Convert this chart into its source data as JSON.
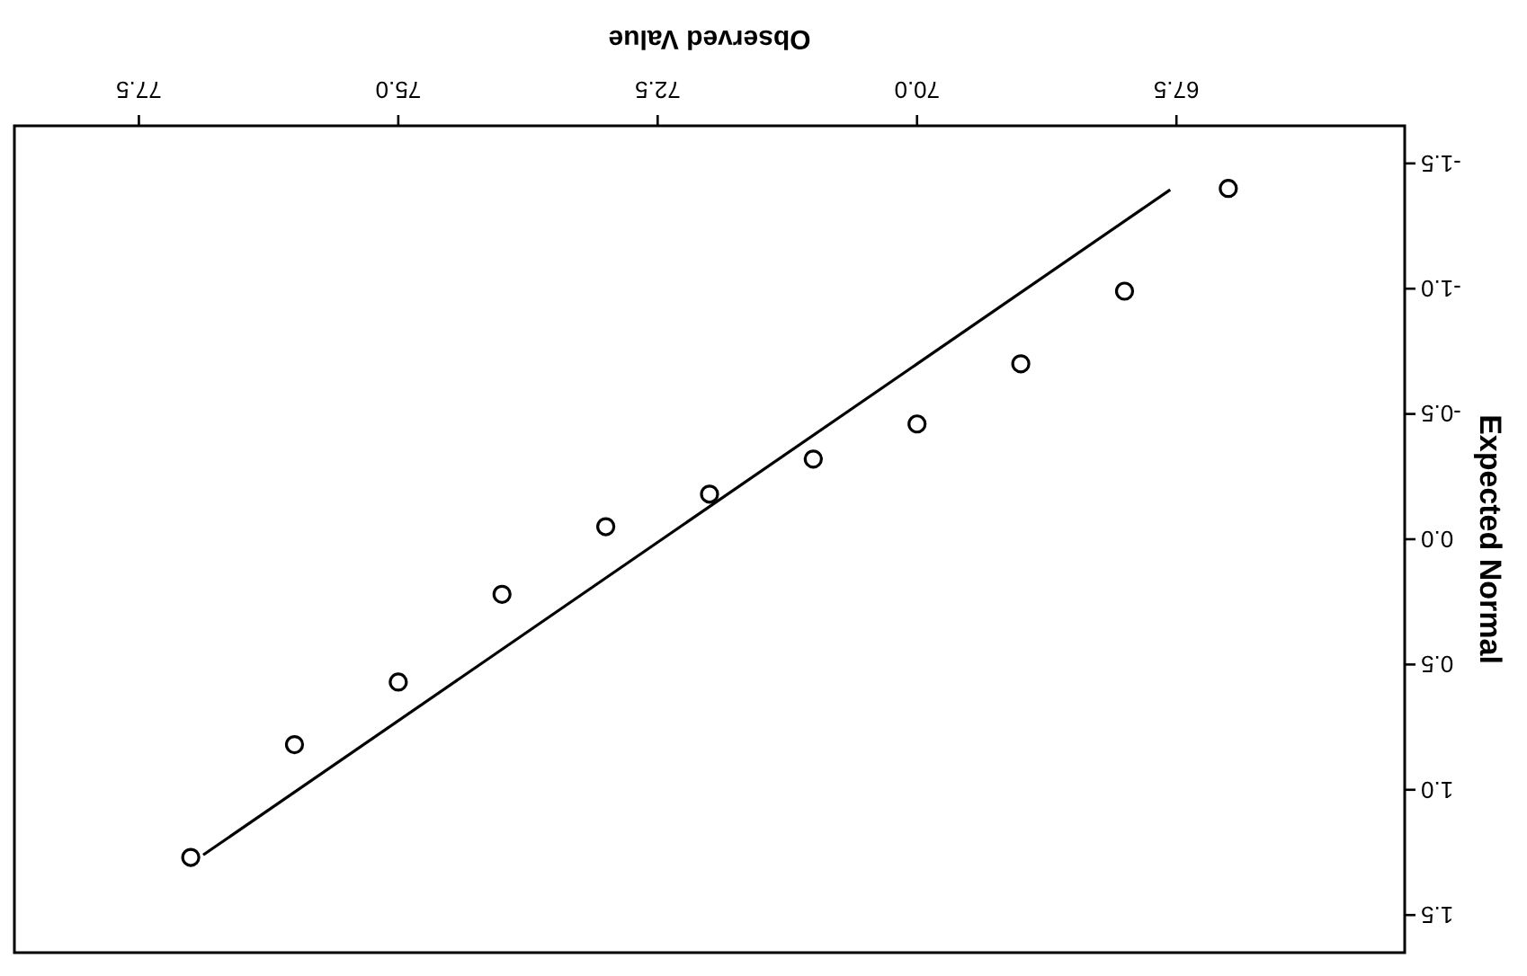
{
  "chart_data": {
    "type": "scatter",
    "xlabel": "Observed Value",
    "ylabel": "Expected Normal",
    "xlim": [
      78.7,
      65.3
    ],
    "xticks": [
      {
        "value": 67.5,
        "label": "67.5"
      },
      {
        "value": 70,
        "label": "70.0"
      },
      {
        "value": 72.5,
        "label": "72.5"
      },
      {
        "value": 75,
        "label": "75.0"
      },
      {
        "value": 77.5,
        "label": "77.5"
      }
    ],
    "ylim": [
      1.65,
      -1.65
    ],
    "yticks": [
      {
        "value": -1.5,
        "label": "-1.5"
      },
      {
        "value": -1,
        "label": "-1.0"
      },
      {
        "value": -0.5,
        "label": "-0.5"
      },
      {
        "value": 0,
        "label": "0.0"
      },
      {
        "value": 0.5,
        "label": "0.5"
      },
      {
        "value": 1,
        "label": "1.0"
      },
      {
        "value": 1.5,
        "label": "1.5"
      }
    ],
    "series": [
      {
        "type": "scatter",
        "marker": "circle",
        "color": "#000000",
        "x": [
          67,
          68,
          69,
          70,
          71,
          72,
          73,
          74,
          75,
          76,
          77
        ],
        "values": [
          -1.4,
          -0.99,
          -0.7,
          -0.46,
          -0.32,
          -0.18,
          -0.05,
          0.22,
          0.57,
          0.82,
          1.27
        ]
      },
      {
        "type": "line",
        "color": "#000000",
        "line_style": "solid",
        "marker": "none",
        "x": [
          67.56,
          76.88
        ],
        "values": [
          -1.395,
          1.26
        ]
      }
    ]
  }
}
